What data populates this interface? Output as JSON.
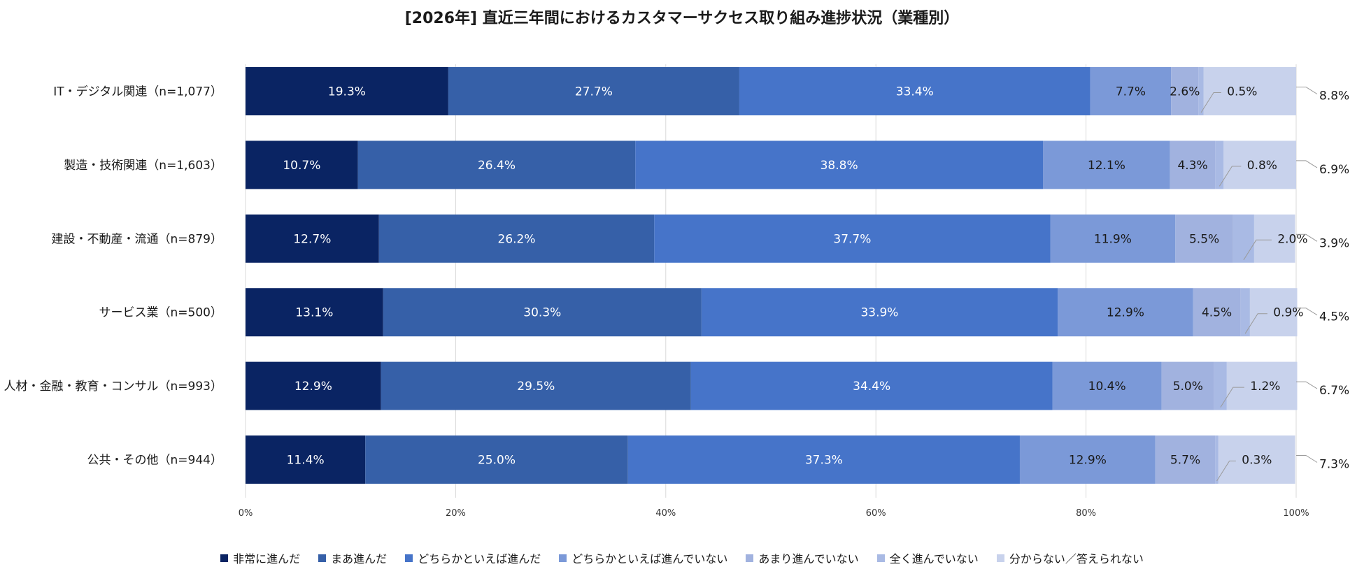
{
  "chart_data": {
    "type": "bar",
    "orientation": "horizontal",
    "stacked": true,
    "title": "[2026年] 直近三年間におけるカスタマーサクセス取り組み進捗状況（業種別）",
    "categories": [
      "IT・デジタル関連（n=1,077）",
      "製造・技術関連（n=1,603）",
      "建設・不動産・流通（n=879）",
      "サービス業（n=500）",
      "人材・金融・教育・コンサル（n=993）",
      "公共・その他（n=944）"
    ],
    "series": [
      {
        "name": "非常に進んだ",
        "color": "#0a2463",
        "values": [
          19.3,
          10.7,
          12.7,
          13.1,
          12.9,
          11.4
        ],
        "labels": [
          "19.3%",
          "10.7%",
          "12.7%",
          "13.1%",
          "12.9%",
          "11.4%"
        ]
      },
      {
        "name": "まあ進んだ",
        "color": "#3660a8",
        "values": [
          27.7,
          26.4,
          26.2,
          30.3,
          29.5,
          25.0
        ],
        "labels": [
          "27.7%",
          "26.4%",
          "26.2%",
          "30.3%",
          "29.5%",
          "25.0%"
        ]
      },
      {
        "name": "どちらかといえば進んだ",
        "color": "#4674c9",
        "values": [
          33.4,
          38.8,
          37.7,
          33.9,
          34.4,
          37.3
        ],
        "labels": [
          "33.4%",
          "38.8%",
          "37.7%",
          "33.9%",
          "34.4%",
          "37.3%"
        ]
      },
      {
        "name": "どちらかといえば進んでいない",
        "color": "#7b99d8",
        "values": [
          7.7,
          12.1,
          11.9,
          12.9,
          10.4,
          12.9
        ],
        "labels": [
          "7.7%",
          "12.1%",
          "11.9%",
          "12.9%",
          "10.4%",
          "12.9%"
        ]
      },
      {
        "name": "あまり進んでいない",
        "color": "#a1b2df",
        "values": [
          2.6,
          4.3,
          5.5,
          4.5,
          5.0,
          5.7
        ],
        "labels": [
          "2.6%",
          "4.3%",
          "5.5%",
          "4.5%",
          "5.0%",
          "5.7%"
        ]
      },
      {
        "name": "全く進んでいない",
        "color": "#a9bae4",
        "values": [
          0.5,
          0.8,
          2.0,
          0.9,
          1.2,
          0.3
        ],
        "labels": [
          "0.5%",
          "0.8%",
          "2.0%",
          "0.9%",
          "1.2%",
          "0.3%"
        ]
      },
      {
        "name": "分からない／答えられない",
        "color": "#c8d2ec",
        "values": [
          8.8,
          6.9,
          3.9,
          4.5,
          6.7,
          7.3
        ],
        "labels": [
          "8.8%",
          "6.9%",
          "3.9%",
          "4.5%",
          "6.7%",
          "7.3%"
        ]
      }
    ],
    "xlim": [
      0,
      100
    ],
    "xticks": [
      "0%",
      "20%",
      "40%",
      "60%",
      "80%",
      "100%"
    ],
    "grid": true,
    "legend_position": "bottom"
  }
}
